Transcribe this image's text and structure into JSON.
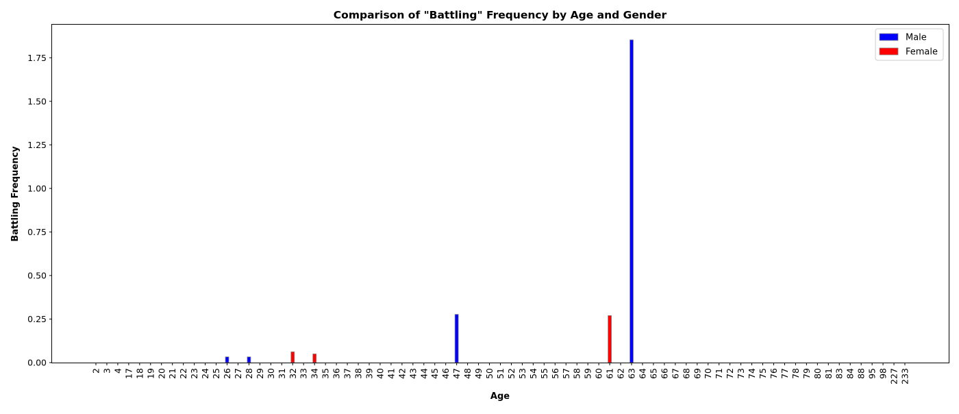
{
  "chart_data": {
    "type": "bar",
    "title": "Comparison of \"Battling\" Frequency by Age and Gender",
    "xlabel": "Age",
    "ylabel": "Battling Frequency",
    "ylim": [
      0,
      1.94
    ],
    "yticks": [
      "0.00",
      "0.25",
      "0.50",
      "0.75",
      "1.00",
      "1.25",
      "1.50",
      "1.75"
    ],
    "grid": false,
    "legend_position": "top-right",
    "categories": [
      "2",
      "3",
      "4",
      "17",
      "18",
      "19",
      "20",
      "21",
      "22",
      "23",
      "24",
      "25",
      "26",
      "27",
      "28",
      "29",
      "30",
      "31",
      "32",
      "33",
      "34",
      "35",
      "36",
      "37",
      "38",
      "39",
      "40",
      "41",
      "42",
      "43",
      "44",
      "45",
      "46",
      "47",
      "48",
      "49",
      "50",
      "51",
      "52",
      "53",
      "54",
      "55",
      "56",
      "57",
      "58",
      "59",
      "60",
      "61",
      "62",
      "63",
      "64",
      "65",
      "66",
      "67",
      "68",
      "69",
      "70",
      "71",
      "72",
      "73",
      "74",
      "75",
      "76",
      "77",
      "78",
      "79",
      "80",
      "81",
      "83",
      "84",
      "88",
      "95",
      "98",
      "227",
      "233"
    ],
    "series": [
      {
        "name": "Male",
        "color": "#0000ff",
        "values": {
          "26": 0.033,
          "28": 0.033,
          "47": 0.277,
          "63": 1.853
        }
      },
      {
        "name": "Female",
        "color": "#ff0000",
        "values": {
          "32": 0.062,
          "34": 0.05,
          "61": 0.27
        }
      }
    ]
  }
}
